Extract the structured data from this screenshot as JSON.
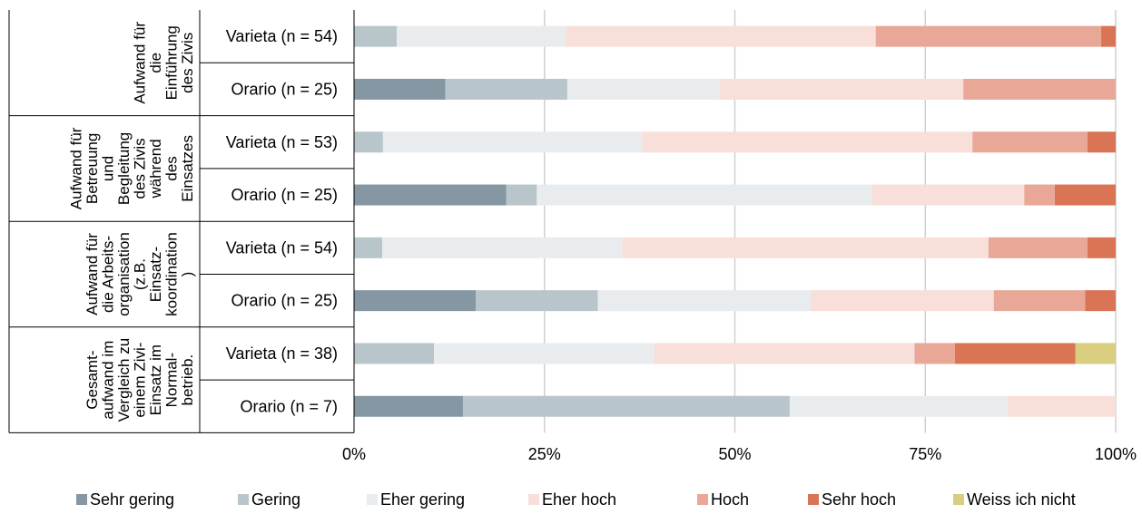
{
  "chart_data": {
    "type": "bar",
    "orientation": "horizontal",
    "stacked": "percent",
    "groups": [
      {
        "label_lines": [
          "Aufwand für",
          "die",
          "Einführung",
          "des Zivis"
        ],
        "rows": [
          0,
          1
        ]
      },
      {
        "label_lines": [
          "Aufwand für",
          "Betreuung",
          "und",
          "Begleitung",
          "des Zivis",
          "während",
          "des",
          "Einsatzes"
        ],
        "rows": [
          2,
          3
        ]
      },
      {
        "label_lines": [
          "Aufwand für",
          "die Arbeits-",
          "organisation",
          "(z.B.",
          "Einsatz-",
          "koordination",
          ")"
        ],
        "rows": [
          4,
          5
        ]
      },
      {
        "label_lines": [
          "Gesamt-",
          "aufwand im",
          "Vergleich zu",
          "einem Zivi-",
          "Einsatz im",
          "Normal-",
          "betrieb."
        ],
        "rows": [
          6,
          7
        ]
      }
    ],
    "categories": [
      "Varieta (n = 54)",
      "Orario (n = 25)",
      "Varieta (n = 53)",
      "Orario (n = 25)",
      "Varieta (n = 54)",
      "Orario (n = 25)",
      "Varieta (n = 38)",
      "Orario (n = 7)"
    ],
    "series": [
      {
        "name": "Sehr gering",
        "color": "#8497a2",
        "values": [
          0,
          12,
          0,
          20,
          0,
          16,
          0,
          14.3
        ]
      },
      {
        "name": "Gering",
        "color": "#b8c5ca",
        "values": [
          5.6,
          16,
          3.8,
          4,
          3.7,
          16,
          10.5,
          42.9
        ]
      },
      {
        "name": "Eher gering",
        "color": "#e9ecee",
        "values": [
          22.2,
          20,
          34,
          44,
          31.5,
          28,
          28.9,
          28.6
        ]
      },
      {
        "name": "Eher hoch",
        "color": "#f8dfd9",
        "values": [
          40.7,
          32,
          43.4,
          20,
          48.1,
          24,
          34.2,
          14.2
        ]
      },
      {
        "name": "Hoch",
        "color": "#e9a797",
        "values": [
          29.6,
          20,
          15.1,
          4,
          13,
          12,
          5.3,
          0
        ]
      },
      {
        "name": "Sehr hoch",
        "color": "#d97455",
        "values": [
          1.9,
          0,
          3.7,
          8,
          3.7,
          4,
          15.8,
          0
        ]
      },
      {
        "name": "Weiss ich nicht",
        "color": "#d9cd80",
        "values": [
          0,
          0,
          0,
          0,
          0,
          0,
          5.3,
          0
        ]
      }
    ],
    "x_ticks": [
      "0%",
      "25%",
      "50%",
      "75%",
      "100%"
    ],
    "xlim": [
      0,
      100
    ],
    "grid": true,
    "legend_position": "bottom"
  }
}
